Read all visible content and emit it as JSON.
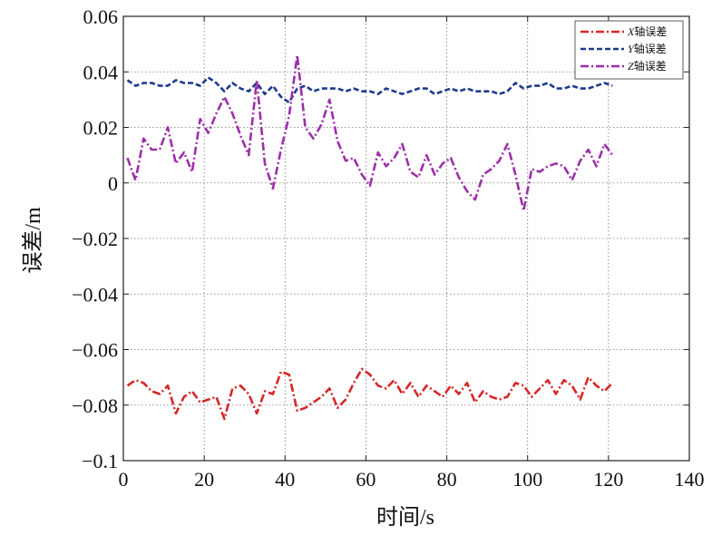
{
  "chart_data": {
    "type": "line",
    "title": "",
    "xlabel": "时间/s",
    "ylabel": "误差/m",
    "xlim": [
      0,
      140
    ],
    "ylim": [
      -0.1,
      0.06
    ],
    "xticks": [
      0,
      20,
      40,
      60,
      80,
      100,
      120,
      140
    ],
    "yticks": [
      -0.1,
      -0.08,
      -0.06,
      -0.04,
      -0.02,
      0,
      0.02,
      0.04,
      0.06
    ],
    "xtick_labels": [
      "0",
      "20",
      "40",
      "60",
      "80",
      "100",
      "120",
      "140"
    ],
    "ytick_labels": [
      "−0.1",
      "−0.08",
      "−0.06",
      "−0.04",
      "−0.02",
      "0",
      "0.02",
      "0.04",
      "0.06"
    ],
    "grid": true,
    "legend_position": "top-right",
    "x": [
      1,
      3,
      5,
      7,
      9,
      11,
      13,
      15,
      17,
      19,
      21,
      23,
      25,
      27,
      29,
      31,
      33,
      35,
      37,
      39,
      41,
      43,
      45,
      47,
      49,
      51,
      53,
      55,
      57,
      59,
      61,
      63,
      65,
      67,
      69,
      71,
      73,
      75,
      77,
      79,
      81,
      83,
      85,
      87,
      89,
      91,
      93,
      95,
      97,
      99,
      101,
      103,
      105,
      107,
      109,
      111,
      113,
      115,
      117,
      119,
      121
    ],
    "series": [
      {
        "name": "X",
        "legend_letter": "X",
        "legend_suffix": "轴误差",
        "color": "#d62728",
        "dash": "dashdot",
        "values": [
          -0.073,
          -0.071,
          -0.072,
          -0.075,
          -0.076,
          -0.073,
          -0.083,
          -0.077,
          -0.075,
          -0.079,
          -0.078,
          -0.077,
          -0.085,
          -0.074,
          -0.073,
          -0.076,
          -0.083,
          -0.075,
          -0.076,
          -0.068,
          -0.069,
          -0.082,
          -0.081,
          -0.079,
          -0.077,
          -0.074,
          -0.081,
          -0.078,
          -0.072,
          -0.067,
          -0.069,
          -0.073,
          -0.074,
          -0.071,
          -0.076,
          -0.072,
          -0.077,
          -0.073,
          -0.075,
          -0.077,
          -0.073,
          -0.076,
          -0.072,
          -0.079,
          -0.075,
          -0.077,
          -0.078,
          -0.077,
          -0.072,
          -0.073,
          -0.077,
          -0.074,
          -0.071,
          -0.076,
          -0.071,
          -0.073,
          -0.078,
          -0.07,
          -0.073,
          -0.075,
          -0.072
        ]
      },
      {
        "name": "Y",
        "legend_letter": "Y",
        "legend_suffix": "轴误差",
        "color": "#1f3a8f",
        "dash": "dashed",
        "values": [
          0.037,
          0.035,
          0.036,
          0.036,
          0.035,
          0.035,
          0.037,
          0.036,
          0.036,
          0.035,
          0.038,
          0.036,
          0.033,
          0.036,
          0.034,
          0.033,
          0.036,
          0.032,
          0.035,
          0.031,
          0.029,
          0.034,
          0.035,
          0.033,
          0.034,
          0.034,
          0.034,
          0.033,
          0.034,
          0.033,
          0.033,
          0.032,
          0.034,
          0.033,
          0.032,
          0.033,
          0.034,
          0.034,
          0.032,
          0.033,
          0.034,
          0.033,
          0.034,
          0.033,
          0.033,
          0.033,
          0.032,
          0.033,
          0.036,
          0.034,
          0.035,
          0.035,
          0.036,
          0.034,
          0.034,
          0.035,
          0.034,
          0.034,
          0.035,
          0.036,
          0.035
        ]
      },
      {
        "name": "Z",
        "legend_letter": "Z",
        "legend_suffix": "轴误差",
        "color": "#9b30a8",
        "dash": "dashdot",
        "values": [
          0.009,
          0.001,
          0.016,
          0.012,
          0.012,
          0.02,
          0.007,
          0.011,
          0.004,
          0.023,
          0.018,
          0.025,
          0.031,
          0.025,
          0.017,
          0.01,
          0.037,
          0.007,
          -0.002,
          0.012,
          0.024,
          0.046,
          0.02,
          0.016,
          0.021,
          0.03,
          0.015,
          0.008,
          0.009,
          0.003,
          -0.001,
          0.011,
          0.006,
          0.009,
          0.014,
          0.004,
          0.002,
          0.01,
          0.003,
          0.007,
          0.009,
          0.002,
          -0.003,
          -0.006,
          0.003,
          0.005,
          0.008,
          0.014,
          0.003,
          -0.01,
          0.005,
          0.004,
          0.006,
          0.007,
          0.006,
          0.001,
          0.008,
          0.012,
          0.006,
          0.014,
          0.01
        ]
      }
    ]
  }
}
